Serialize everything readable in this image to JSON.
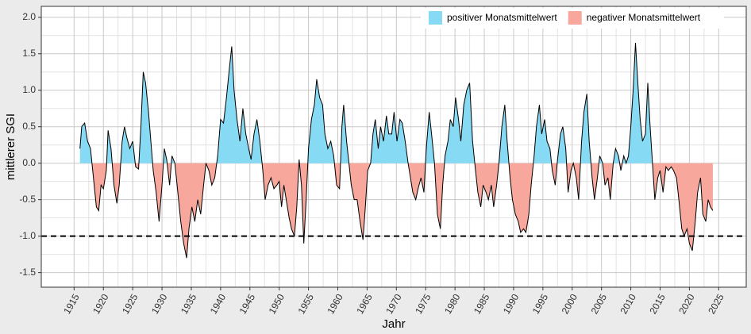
{
  "chart_data": {
    "type": "area",
    "x_label": "Jahr",
    "y_label": "mittlerer SGI",
    "x": [
      1916.0,
      1916.3,
      1916.8,
      1917.3,
      1917.8,
      1918.3,
      1918.8,
      1919.2,
      1919.6,
      1920.0,
      1920.5,
      1920.8,
      1921.3,
      1921.8,
      1922.3,
      1922.7,
      1923.2,
      1923.6,
      1924.0,
      1924.5,
      1925.0,
      1925.5,
      1926.0,
      1926.4,
      1926.8,
      1927.2,
      1927.7,
      1928.1,
      1928.5,
      1929.0,
      1929.5,
      1930.0,
      1930.4,
      1930.8,
      1931.3,
      1931.7,
      1932.2,
      1932.7,
      1933.2,
      1933.7,
      1934.2,
      1934.6,
      1935.1,
      1935.6,
      1936.1,
      1936.6,
      1937.1,
      1937.5,
      1938.0,
      1938.5,
      1939.0,
      1939.5,
      1940.0,
      1940.5,
      1941.0,
      1941.5,
      1941.9,
      1942.3,
      1942.8,
      1943.3,
      1943.8,
      1944.3,
      1944.8,
      1945.2,
      1945.7,
      1946.2,
      1946.7,
      1947.2,
      1947.6,
      1948.1,
      1948.6,
      1949.1,
      1949.6,
      1950.0,
      1950.4,
      1950.8,
      1951.2,
      1951.7,
      1952.1,
      1952.6,
      1953.0,
      1953.4,
      1953.8,
      1954.2,
      1954.6,
      1955.0,
      1955.5,
      1956.0,
      1956.4,
      1956.9,
      1957.4,
      1957.8,
      1958.3,
      1958.8,
      1959.3,
      1959.8,
      1960.3,
      1960.7,
      1961.0,
      1961.5,
      1961.9,
      1962.3,
      1962.8,
      1963.3,
      1963.8,
      1964.3,
      1964.7,
      1965.1,
      1965.6,
      1966.0,
      1966.4,
      1966.9,
      1967.3,
      1967.8,
      1968.3,
      1968.7,
      1969.2,
      1969.6,
      1970.1,
      1970.6,
      1971.0,
      1971.5,
      1972.0,
      1972.4,
      1972.8,
      1973.3,
      1973.7,
      1974.2,
      1974.7,
      1975.1,
      1975.6,
      1976.0,
      1976.5,
      1977.0,
      1977.5,
      1977.9,
      1978.3,
      1978.8,
      1979.2,
      1979.7,
      1980.1,
      1980.6,
      1981.0,
      1981.5,
      1982.0,
      1982.5,
      1983.0,
      1983.5,
      1983.9,
      1984.4,
      1984.8,
      1985.3,
      1985.7,
      1986.2,
      1986.6,
      1987.1,
      1987.5,
      1988.0,
      1988.5,
      1988.9,
      1989.4,
      1989.8,
      1990.3,
      1990.8,
      1991.2,
      1991.7,
      1992.1,
      1992.6,
      1993.0,
      1993.5,
      1993.9,
      1994.4,
      1994.8,
      1995.3,
      1995.7,
      1996.2,
      1996.6,
      1997.1,
      1997.5,
      1998.0,
      1998.4,
      1998.9,
      1999.3,
      1999.8,
      2000.2,
      2000.7,
      2001.1,
      2001.6,
      2002.0,
      2002.5,
      2002.9,
      2003.4,
      2003.8,
      2004.3,
      2004.7,
      2005.2,
      2005.6,
      2006.1,
      2006.5,
      2007.0,
      2007.4,
      2007.9,
      2008.3,
      2008.8,
      2009.2,
      2009.6,
      2010.0,
      2010.4,
      2010.8,
      2011.2,
      2011.6,
      2012.0,
      2012.5,
      2012.9,
      2013.3,
      2013.7,
      2014.1,
      2014.6,
      2015.0,
      2015.5,
      2016.0,
      2016.4,
      2016.9,
      2017.3,
      2017.8,
      2018.2,
      2018.7,
      2019.1,
      2019.6,
      2020.0,
      2020.5,
      2021.0,
      2021.4,
      2021.9,
      2022.3,
      2022.8,
      2023.2,
      2023.6,
      2024.0
    ],
    "values": [
      0.2,
      0.5,
      0.55,
      0.3,
      0.2,
      -0.2,
      -0.6,
      -0.65,
      -0.3,
      -0.35,
      -0.1,
      0.45,
      0.2,
      -0.3,
      -0.55,
      -0.3,
      0.3,
      0.5,
      0.35,
      0.2,
      0.3,
      -0.05,
      -0.08,
      0.5,
      1.25,
      1.1,
      0.7,
      0.3,
      -0.1,
      -0.4,
      -0.8,
      -0.3,
      0.2,
      0.05,
      -0.3,
      0.1,
      0.0,
      -0.4,
      -0.8,
      -1.1,
      -1.3,
      -0.9,
      -0.6,
      -0.8,
      -0.5,
      -0.7,
      -0.3,
      0.0,
      -0.1,
      -0.3,
      -0.2,
      0.1,
      0.6,
      0.55,
      0.9,
      1.3,
      1.6,
      1.0,
      0.6,
      0.3,
      0.75,
      0.4,
      0.2,
      0.05,
      0.4,
      0.6,
      0.3,
      -0.1,
      -0.5,
      -0.3,
      -0.2,
      -0.35,
      -0.3,
      -0.25,
      -0.6,
      -0.3,
      -0.5,
      -0.75,
      -0.9,
      -1.0,
      -0.6,
      0.05,
      -0.3,
      -1.1,
      -0.5,
      0.2,
      0.6,
      0.8,
      1.15,
      0.9,
      0.8,
      0.4,
      0.2,
      0.3,
      0.1,
      -0.3,
      -0.35,
      0.5,
      0.8,
      0.3,
      0.0,
      -0.3,
      -0.5,
      -0.5,
      -0.8,
      -1.05,
      -0.6,
      -0.1,
      0.0,
      0.4,
      0.6,
      0.2,
      0.5,
      0.3,
      0.65,
      0.4,
      0.4,
      0.7,
      0.3,
      0.6,
      0.55,
      0.3,
      0.0,
      -0.2,
      -0.4,
      -0.5,
      -0.35,
      -0.2,
      -0.4,
      0.2,
      0.7,
      0.4,
      0.0,
      -0.7,
      -0.9,
      -0.3,
      0.1,
      0.3,
      0.6,
      0.5,
      0.9,
      0.6,
      0.3,
      0.8,
      1.0,
      1.1,
      0.3,
      -0.1,
      -0.4,
      -0.6,
      -0.3,
      -0.4,
      -0.5,
      -0.3,
      -0.6,
      -0.3,
      0.0,
      0.5,
      0.8,
      0.3,
      -0.2,
      -0.5,
      -0.7,
      -0.8,
      -0.95,
      -0.9,
      -0.95,
      -0.7,
      -0.3,
      0.1,
      0.5,
      0.8,
      0.4,
      0.6,
      0.3,
      0.2,
      -0.1,
      -0.3,
      0.05,
      0.4,
      0.5,
      0.2,
      -0.4,
      -0.1,
      0.0,
      -0.2,
      -0.5,
      0.3,
      0.7,
      0.95,
      0.3,
      -0.2,
      -0.5,
      -0.2,
      0.1,
      0.0,
      -0.3,
      -0.2,
      -0.5,
      0.0,
      0.2,
      0.1,
      -0.1,
      0.1,
      0.0,
      0.1,
      0.5,
      1.0,
      1.65,
      1.1,
      0.6,
      0.3,
      0.4,
      1.1,
      0.5,
      0.0,
      -0.5,
      -0.2,
      -0.1,
      -0.4,
      -0.05,
      -0.1,
      -0.05,
      -0.1,
      -0.2,
      -0.5,
      -0.9,
      -1.0,
      -0.9,
      -1.1,
      -1.2,
      -0.8,
      -0.4,
      -0.2,
      -0.7,
      -0.8,
      -0.5,
      -0.6,
      -0.65
    ],
    "series": [
      {
        "name": "positiver Monatsmittelwert",
        "color": "#87daf3"
      },
      {
        "name": "negativer Monatsmittelwert",
        "color": "#f7a79b"
      }
    ],
    "line_color": "#000000",
    "reference_line": -1,
    "xlim": [
      1909.4,
      2029.7
    ],
    "xticks": [
      1915,
      1920,
      1925,
      1930,
      1935,
      1940,
      1945,
      1950,
      1955,
      1960,
      1965,
      1970,
      1975,
      1980,
      1985,
      1990,
      1995,
      2000,
      2005,
      2010,
      2015,
      2020,
      2025
    ],
    "ylim": [
      -1.7,
      2.15
    ],
    "yticks": [
      {
        "value": -1.5,
        "label": "-1.5"
      },
      {
        "value": -1,
        "label": "-1.0"
      },
      {
        "value": -0.5,
        "label": "-0.5"
      },
      {
        "value": 0,
        "label": "0.0"
      },
      {
        "value": 0.5,
        "label": "0.5"
      },
      {
        "value": 1,
        "label": "1.0"
      },
      {
        "value": 1.5,
        "label": "1.5"
      },
      {
        "value": 2,
        "label": "2.0"
      }
    ],
    "grid": true,
    "legend": "top-right"
  }
}
